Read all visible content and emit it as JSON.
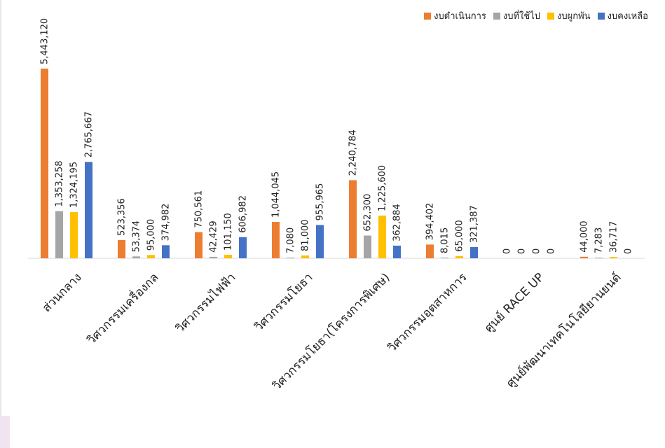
{
  "chart_data": {
    "type": "bar",
    "title": "",
    "xlabel": "",
    "ylabel": "",
    "ylim": [
      0,
      6000000
    ],
    "grid": false,
    "legend_position": "top-right",
    "categories": [
      "ส่วนกลาง",
      "วิศวกรรมเครื่องกล",
      "วิศวกรรมไฟฟ้า",
      "วิศวกรรมโยธา",
      "วิศวกรรมโยธา(โครงการพิเศษ)",
      "วิศวกรรมอุตสาหการ",
      "ศูนย์ RACE UP",
      "ศูนย์พัฒนาเทคโนโลยียานยนต์"
    ],
    "series": [
      {
        "name": "งบดำเนินการ",
        "color": "#ed7d31",
        "values": [
          5443120,
          523356,
          750561,
          1044045,
          2240784,
          394402,
          0,
          44000
        ],
        "labels": [
          "5,443,120",
          "523,356",
          "750,561",
          "1,044,045",
          "2,240,784",
          "394,402",
          "0",
          "44,000"
        ]
      },
      {
        "name": "งบที่ใช้ไป",
        "color": "#a5a5a5",
        "values": [
          1353258,
          53374,
          42429,
          7080,
          652300,
          8015,
          0,
          7283
        ],
        "labels": [
          "1,353,258",
          "53,374",
          "42,429",
          "7,080",
          "652,300",
          "8,015",
          "0",
          "7,283"
        ]
      },
      {
        "name": "งบผูกพัน",
        "color": "#ffc000",
        "values": [
          1324195,
          95000,
          101150,
          81000,
          1225600,
          65000,
          0,
          36717
        ],
        "labels": [
          "1,324,195",
          "95,000",
          "101,150",
          "81,000",
          "1,225,600",
          "65,000",
          "0",
          "36,717"
        ]
      },
      {
        "name": "งบคงเหลือ",
        "color": "#4472c4",
        "values": [
          2765667,
          374982,
          606982,
          955965,
          362884,
          321387,
          0,
          0
        ],
        "labels": [
          "2,765,667",
          "374,982",
          "606,982",
          "955,965",
          "362,884",
          "321,387",
          "0",
          "0"
        ]
      }
    ]
  }
}
